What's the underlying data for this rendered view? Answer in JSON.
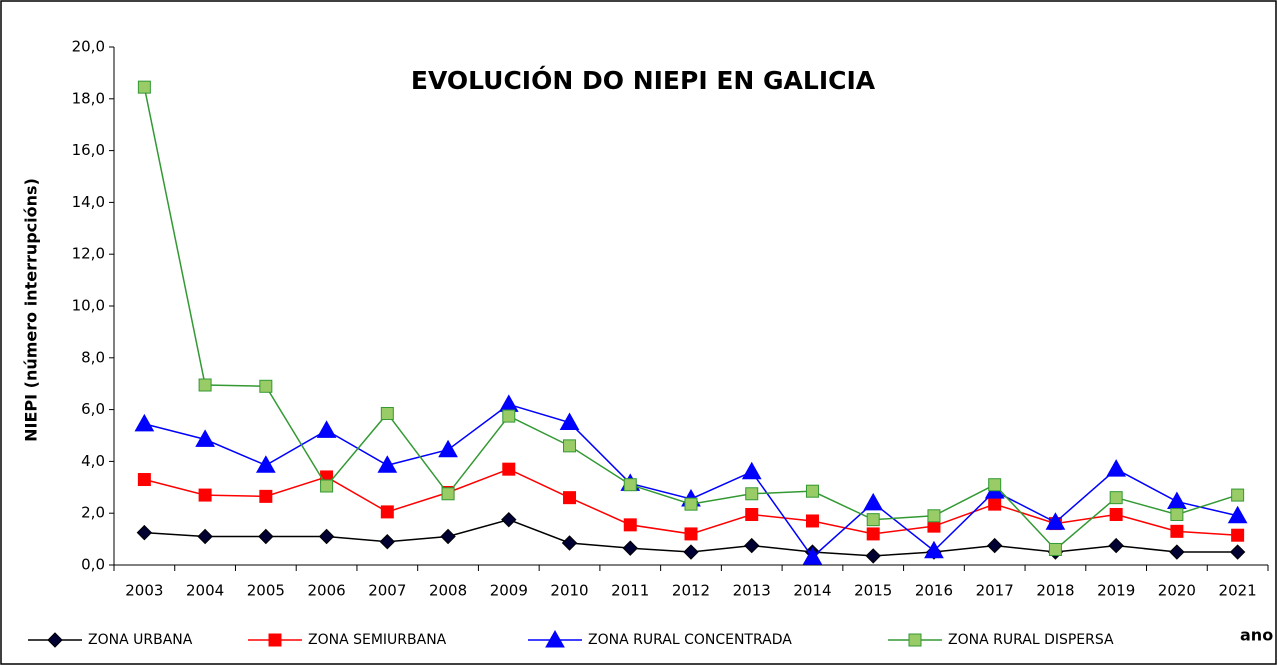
{
  "chart_data": {
    "type": "line",
    "title": "EVOLUCIÓN DO NIEPI EN GALICIA",
    "y_label": "NIEPI (número interrupcións)",
    "x_label": "ano",
    "categories": [
      "2003",
      "2004",
      "2005",
      "2006",
      "2007",
      "2008",
      "2009",
      "2010",
      "2011",
      "2012",
      "2013",
      "2014",
      "2015",
      "2016",
      "2017",
      "2018",
      "2019",
      "2020",
      "2021"
    ],
    "ylim": [
      0,
      20
    ],
    "yticks": [
      {
        "value": 0,
        "label": "0,0"
      },
      {
        "value": 2,
        "label": "2,0"
      },
      {
        "value": 4,
        "label": "4,0"
      },
      {
        "value": 6,
        "label": "6,0"
      },
      {
        "value": 8,
        "label": "8,0"
      },
      {
        "value": 10,
        "label": "10,0"
      },
      {
        "value": 12,
        "label": "12,0"
      },
      {
        "value": 14,
        "label": "14,0"
      },
      {
        "value": 16,
        "label": "16,0"
      },
      {
        "value": 18,
        "label": "18,0"
      },
      {
        "value": 20,
        "label": "20,0"
      }
    ],
    "grid": false,
    "legend": "bottom",
    "series": [
      {
        "name": "ZONA URBANA",
        "color": "#000000",
        "marker": "diamond",
        "marker_color": "#000033",
        "values": [
          1.25,
          1.1,
          1.1,
          1.1,
          0.9,
          1.1,
          1.75,
          0.85,
          0.65,
          0.5,
          0.75,
          0.5,
          0.35,
          0.5,
          0.75,
          0.5,
          0.75,
          0.5,
          0.5
        ]
      },
      {
        "name": "ZONA SEMIURBANA",
        "color": "#ff0000",
        "marker": "square",
        "marker_color": "#ff0000",
        "values": [
          3.3,
          2.7,
          2.65,
          3.4,
          2.05,
          2.8,
          3.7,
          2.6,
          1.55,
          1.2,
          1.95,
          1.7,
          1.2,
          1.5,
          2.35,
          1.6,
          1.95,
          1.3,
          1.15
        ]
      },
      {
        "name": "ZONA RURAL CONCENTRADA",
        "color": "#0000ff",
        "marker": "triangle",
        "marker_color": "#0000ff",
        "values": [
          5.45,
          4.85,
          3.85,
          5.2,
          3.85,
          4.45,
          6.2,
          5.5,
          3.15,
          2.55,
          3.6,
          0.3,
          2.4,
          0.55,
          2.85,
          1.65,
          3.7,
          2.45,
          1.9
        ]
      },
      {
        "name": "ZONA RURAL DISPERSA",
        "color": "#339933",
        "marker": "square",
        "marker_color": "#99cc66",
        "values": [
          18.45,
          6.95,
          6.9,
          3.05,
          5.85,
          2.75,
          5.75,
          4.6,
          3.1,
          2.35,
          2.75,
          2.85,
          1.75,
          1.9,
          3.1,
          0.6,
          2.6,
          1.95,
          2.7
        ]
      }
    ]
  }
}
